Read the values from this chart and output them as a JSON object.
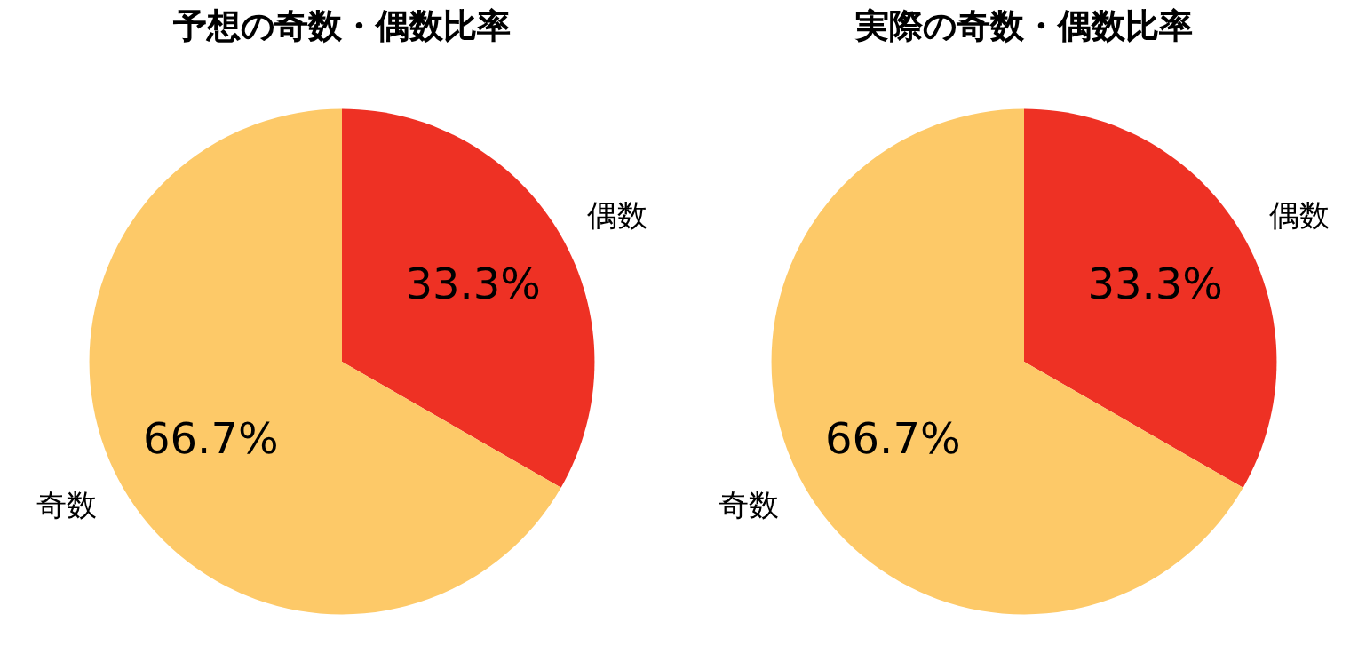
{
  "chart_data": [
    {
      "type": "pie",
      "title": "予想の奇数・偶数比率",
      "categories": [
        "偶数",
        "奇数"
      ],
      "values": [
        33.3,
        66.7
      ],
      "colors": [
        "#ee3124",
        "#fdc968"
      ],
      "value_labels": [
        "33.3%",
        "66.7%"
      ]
    },
    {
      "type": "pie",
      "title": "実際の奇数・偶数比率",
      "categories": [
        "偶数",
        "奇数"
      ],
      "values": [
        33.3,
        66.7
      ],
      "colors": [
        "#ee3124",
        "#fdc968"
      ],
      "value_labels": [
        "33.3%",
        "66.7%"
      ]
    }
  ]
}
